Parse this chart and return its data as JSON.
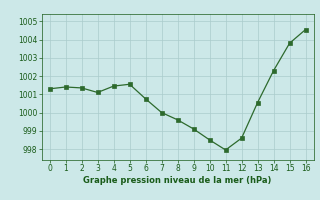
{
  "x": [
    0,
    1,
    2,
    3,
    4,
    5,
    6,
    7,
    8,
    9,
    10,
    11,
    12,
    13,
    14,
    15,
    16
  ],
  "y": [
    1001.3,
    1001.4,
    1001.35,
    1001.1,
    1001.45,
    1001.55,
    1000.75,
    1000.0,
    999.6,
    999.1,
    998.5,
    997.95,
    998.6,
    1000.55,
    1002.3,
    1003.8,
    1004.55
  ],
  "line_color": "#2d6a2d",
  "marker_color": "#2d6a2d",
  "bg_color": "#cce8e8",
  "grid_color": "#aacccc",
  "xlabel": "Graphe pression niveau de la mer (hPa)",
  "xlabel_color": "#1a5c1a",
  "tick_color": "#1a5c1a",
  "xlim": [
    -0.5,
    16.5
  ],
  "ylim": [
    997.4,
    1005.4
  ],
  "yticks": [
    998,
    999,
    1000,
    1001,
    1002,
    1003,
    1004,
    1005
  ],
  "xticks": [
    0,
    1,
    2,
    3,
    4,
    5,
    6,
    7,
    8,
    9,
    10,
    11,
    12,
    13,
    14,
    15,
    16
  ]
}
